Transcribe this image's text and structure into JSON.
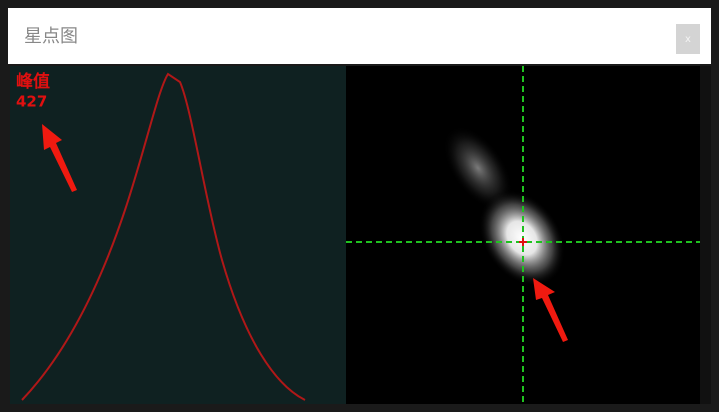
{
  "window": {
    "title": "星点图",
    "close": "x"
  },
  "profile": {
    "peak_label": "峰值",
    "peak_value": 427
  }
}
